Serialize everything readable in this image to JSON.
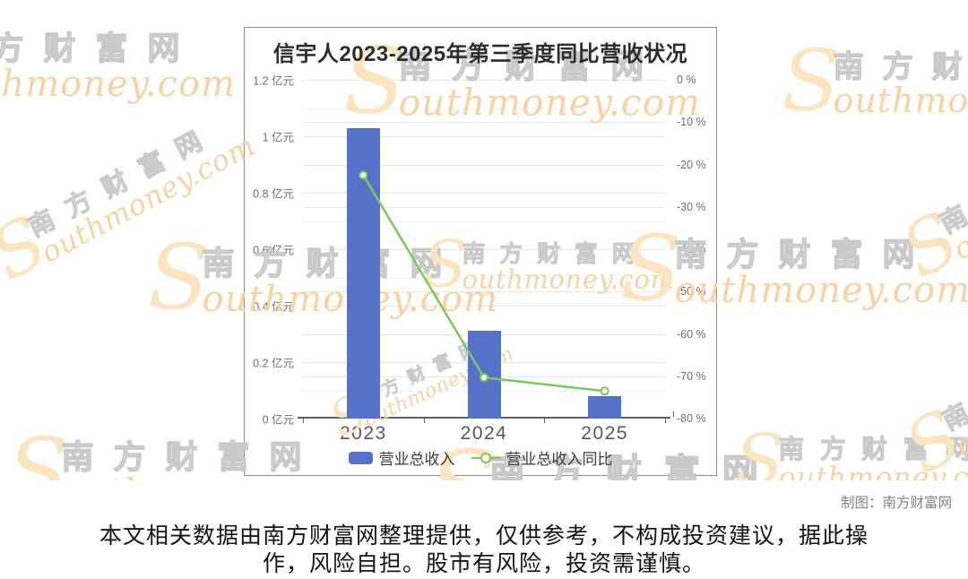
{
  "watermark": {
    "s": "S",
    "site_cn": "南方财富网",
    "site_en_rest": "outhmoney.com"
  },
  "chart_data": {
    "type": "combo",
    "title": "信宇人2023-2025年第三季度同比营收状况",
    "categories": [
      "2023",
      "2024",
      "2025"
    ],
    "series": [
      {
        "name": "营业总收入",
        "type": "bar",
        "y_axis": "left",
        "unit": "亿元",
        "values": [
          1.03,
          0.31,
          0.08
        ],
        "color": "#5572c8"
      },
      {
        "name": "营业总收入同比",
        "type": "line",
        "y_axis": "right",
        "unit": "%",
        "values": [
          -22.5,
          -70.3,
          -73.5
        ],
        "color": "#7cc85c"
      }
    ],
    "left_axis": {
      "min": 0,
      "max": 1.2,
      "labels": [
        "1.2 亿元",
        "1 亿元",
        "0.8 亿元",
        "0.6 亿元",
        "0.4 亿元",
        "0.2 亿元",
        "0 亿元"
      ]
    },
    "right_axis": {
      "min": -80,
      "max": 0,
      "labels": [
        "0 %",
        "-10 %",
        "-20 %",
        "-30 %",
        "-40 %",
        "-50 %",
        "-60 %",
        "-70 %",
        "-80 %"
      ]
    },
    "legend_position": "bottom",
    "grid": true
  },
  "credit": "制图：南方财富网",
  "disclaimer": {
    "line1": "本文相关数据由南方财富网整理提供，仅供参考，不构成投资建议，据此操",
    "line2": "作，风险自担。股市有风险，投资需谨慎。"
  }
}
